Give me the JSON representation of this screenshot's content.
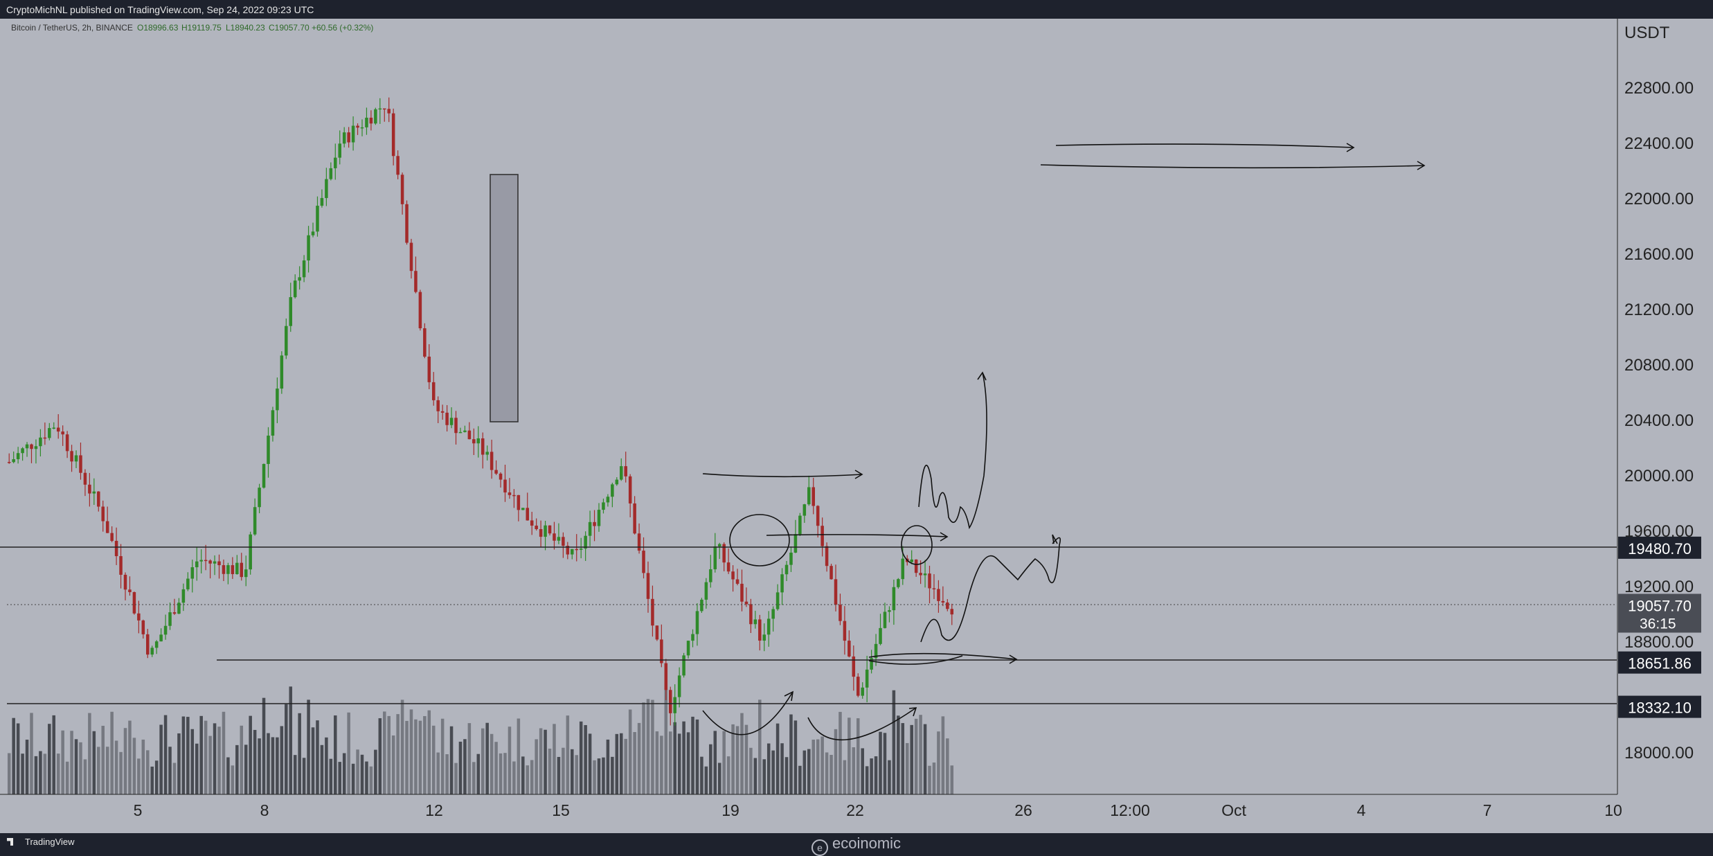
{
  "header": {
    "publish_line": "CryptoMichNL published on TradingView.com, Sep 24, 2022 09:23 UTC"
  },
  "legend": {
    "symbol": "Bitcoin / TetherUS, 2h, BINANCE",
    "open": "O18996.63",
    "high": "H19119.75",
    "low": "L18940.23",
    "close": "C19057.70",
    "change": "+60.56 (+0.32%)"
  },
  "footer": {
    "tradingview": "TradingView",
    "watermark": "ecoinomic"
  },
  "colors": {
    "background": "#b2b5be",
    "up": "#2f8a2a",
    "down": "#a32a2a",
    "line": "#222222",
    "label_bg": "#1e222d"
  },
  "chart_data": {
    "type": "candlestick",
    "title": "Bitcoin / TetherUS, 2h, BINANCE",
    "currency": "USDT",
    "y_ticks": [
      "22800.00",
      "22400.00",
      "22000.00",
      "21600.00",
      "21200.00",
      "20800.00",
      "20400.00",
      "20000.00",
      "19600.00",
      "19200.00",
      "18800.00",
      "18000.00"
    ],
    "x_ticks": [
      "5",
      "8",
      "12",
      "15",
      "19",
      "22",
      "26",
      "12:00",
      "Oct",
      "4",
      "7",
      "10"
    ],
    "ylim": [
      17700,
      23300
    ],
    "price_labels": [
      {
        "value": "19480.70"
      },
      {
        "value": "19057.70",
        "countdown": "36:15"
      },
      {
        "value": "18651.86"
      },
      {
        "value": "18332.10"
      }
    ],
    "ohlc_keypoints": [
      {
        "x": "Sep 3",
        "price": 20100
      },
      {
        "x": "Sep 3",
        "price": 20380
      },
      {
        "x": "Sep 6",
        "price": 19700
      },
      {
        "x": "Sep 7",
        "price": 18700
      },
      {
        "x": "Sep 8",
        "price": 19400
      },
      {
        "x": "Sep 9",
        "price": 19300
      },
      {
        "x": "Sep 10",
        "price": 21300
      },
      {
        "x": "Sep 12",
        "price": 22400
      },
      {
        "x": "Sep 13",
        "price": 22700
      },
      {
        "x": "Sep 13",
        "price": 20500
      },
      {
        "x": "Sep 14",
        "price": 20200
      },
      {
        "x": "Sep 15",
        "price": 19700
      },
      {
        "x": "Sep 16",
        "price": 19400
      },
      {
        "x": "Sep 17",
        "price": 20100
      },
      {
        "x": "Sep 19",
        "price": 18300
      },
      {
        "x": "Sep 20",
        "price": 19500
      },
      {
        "x": "Sep 21",
        "price": 18800
      },
      {
        "x": "Sep 22",
        "price": 19900
      },
      {
        "x": "Sep 22",
        "price": 18400
      },
      {
        "x": "Sep 23",
        "price": 19400
      },
      {
        "x": "Sep 24",
        "price": 19057.7
      }
    ]
  }
}
